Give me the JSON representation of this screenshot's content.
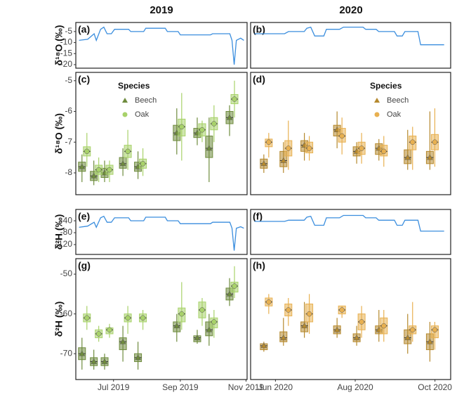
{
  "column_titles": [
    "2019",
    "2020"
  ],
  "chart_data": [
    {
      "type": "line",
      "label": "(a)",
      "ylabel": "δ¹⁸O (‰)",
      "color": "#3b8ede",
      "xlim": [
        147,
        306
      ],
      "ylim": [
        -21.6,
        -0.9
      ],
      "yticks": [
        -5,
        -10,
        -15,
        -20
      ],
      "x": [
        150,
        158,
        164,
        166,
        170,
        173,
        176,
        180,
        183,
        196,
        198,
        210,
        212,
        230,
        232,
        242,
        244,
        272,
        274,
        290,
        292,
        294,
        296,
        300,
        303
      ],
      "values": [
        -9,
        -8.5,
        -6,
        -9,
        -4,
        -3,
        -6,
        -6,
        -4,
        -4,
        -5,
        -5,
        -3.5,
        -3.5,
        -5,
        -5,
        -6.5,
        -6.5,
        -6,
        -6,
        -9,
        -20,
        -9,
        -8,
        -9
      ]
    },
    {
      "type": "line",
      "label": "(b)",
      "color": "#3b8ede",
      "xlim": [
        134,
        287
      ],
      "ylim": [
        -21.6,
        -0.9
      ],
      "x": [
        137,
        160,
        163,
        175,
        177,
        180,
        183,
        190,
        192,
        202,
        205,
        220,
        222,
        230,
        232,
        244,
        246,
        250,
        252,
        262,
        264,
        282
      ],
      "values": [
        -6,
        -6,
        -5,
        -5,
        -3.5,
        -3,
        -7,
        -7,
        -4,
        -4,
        -3,
        -3,
        -4,
        -4,
        -5,
        -5,
        -7,
        -7,
        -5,
        -5,
        -11,
        -11
      ]
    },
    {
      "type": "box",
      "label": "(c)",
      "ylabel": "δ¹⁸O (‰)",
      "xlim": [
        147,
        306
      ],
      "ylim": [
        -8.71,
        -4.73
      ],
      "yticks": [
        -5,
        -6,
        -7,
        -8
      ],
      "legend": "upper-left",
      "legend_title": "Species",
      "x": [
        155,
        166,
        176,
        193,
        207,
        243,
        262,
        273,
        292
      ],
      "series": [
        {
          "name": "Beech",
          "marker": "triangle",
          "color": "#6e8b3d",
          "min": [
            -8.3,
            -8.4,
            -8.3,
            -8.1,
            -8.2,
            -7.4,
            -7.1,
            -8.3,
            -6.8
          ],
          "q1": [
            -7.95,
            -8.25,
            -8.15,
            -7.85,
            -7.95,
            -6.95,
            -6.85,
            -7.5,
            -6.4
          ],
          "median": [
            -7.8,
            -8.1,
            -8.0,
            -7.7,
            -7.8,
            -6.7,
            -6.7,
            -7.2,
            -6.2
          ],
          "q3": [
            -7.65,
            -7.95,
            -7.85,
            -7.5,
            -7.65,
            -6.45,
            -6.55,
            -6.8,
            -6.0
          ],
          "max": [
            -7.4,
            -7.6,
            -7.6,
            -7.2,
            -7.3,
            -5.9,
            -6.2,
            -6.2,
            -5.8
          ]
        },
        {
          "name": "Oak",
          "marker": "circle",
          "color": "#a8d26a",
          "min": [
            -7.8,
            -8.3,
            -8.3,
            -7.9,
            -8.1,
            -7.6,
            -7.0,
            -7.0,
            -6.2
          ],
          "q1": [
            -7.45,
            -8.05,
            -8.05,
            -7.5,
            -7.85,
            -6.8,
            -6.8,
            -6.6,
            -5.75
          ],
          "median": [
            -7.3,
            -7.9,
            -7.9,
            -7.3,
            -7.7,
            -6.5,
            -6.6,
            -6.4,
            -5.6
          ],
          "q3": [
            -7.15,
            -7.75,
            -7.75,
            -7.1,
            -7.55,
            -6.25,
            -6.4,
            -6.2,
            -5.45
          ],
          "max": [
            -6.7,
            -7.5,
            -7.6,
            -6.6,
            -7.2,
            -5.4,
            -6.3,
            -5.8,
            -5.0
          ]
        }
      ]
    },
    {
      "type": "box",
      "label": "(d)",
      "xlim": [
        134,
        287
      ],
      "ylim": [
        -8.71,
        -4.73
      ],
      "legend": "upper-right",
      "legend_title": "Species",
      "x": [
        146,
        161,
        177,
        202,
        217,
        234,
        256,
        273
      ],
      "series": [
        {
          "name": "Beech",
          "marker": "triangle",
          "color": "#b5892e",
          "min": [
            -8.0,
            -8.0,
            -7.6,
            -7.2,
            -7.7,
            -7.6,
            -7.9,
            -7.9
          ],
          "q1": [
            -7.85,
            -7.8,
            -7.3,
            -6.8,
            -7.45,
            -7.4,
            -7.7,
            -7.7
          ],
          "median": [
            -7.7,
            -7.6,
            -7.1,
            -6.6,
            -7.3,
            -7.2,
            -7.5,
            -7.5
          ],
          "q3": [
            -7.55,
            -7.3,
            -6.95,
            -6.45,
            -7.15,
            -7.05,
            -7.25,
            -7.3
          ],
          "max": [
            -7.4,
            -7.0,
            -6.7,
            -6.0,
            -7.0,
            -6.9,
            -6.6,
            -6.0
          ]
        },
        {
          "name": "Oak",
          "marker": "circle",
          "color": "#e8b050",
          "min": [
            -7.5,
            -7.9,
            -7.6,
            -7.4,
            -7.7,
            -7.8,
            -7.9,
            -7.8
          ],
          "q1": [
            -7.15,
            -7.45,
            -7.35,
            -7.0,
            -7.4,
            -7.45,
            -7.25,
            -7.25
          ],
          "median": [
            -7.0,
            -7.2,
            -7.2,
            -6.8,
            -7.2,
            -7.3,
            -7.0,
            -7.0
          ],
          "q3": [
            -6.9,
            -6.95,
            -7.0,
            -6.55,
            -7.0,
            -7.1,
            -6.8,
            -6.75
          ],
          "max": [
            -6.7,
            -6.3,
            -6.8,
            -6.2,
            -6.7,
            -6.8,
            -6.5,
            -5.9
          ]
        }
      ]
    },
    {
      "type": "line",
      "label": "(e)",
      "ylabel": "δ²H (‰)",
      "color": "#3b8ede",
      "xlim": [
        147,
        306
      ],
      "ylim": [
        -153,
        -2
      ],
      "yticks": [
        -40,
        -80,
        -120
      ],
      "x": [
        150,
        158,
        164,
        166,
        170,
        173,
        176,
        180,
        183,
        196,
        198,
        210,
        212,
        230,
        232,
        242,
        244,
        272,
        274,
        290,
        292,
        294,
        296,
        300,
        303
      ],
      "values": [
        -62,
        -58,
        -45,
        -62,
        -30,
        -25,
        -45,
        -45,
        -30,
        -30,
        -40,
        -40,
        -28,
        -28,
        -40,
        -40,
        -50,
        -50,
        -45,
        -45,
        -65,
        -140,
        -65,
        -60,
        -65
      ]
    },
    {
      "type": "line",
      "label": "(f)",
      "color": "#3b8ede",
      "xlim": [
        134,
        287
      ],
      "ylim": [
        -153,
        -2
      ],
      "x": [
        137,
        160,
        163,
        175,
        177,
        180,
        183,
        190,
        192,
        202,
        205,
        220,
        222,
        230,
        232,
        244,
        246,
        250,
        252,
        262,
        264,
        282
      ],
      "values": [
        -42,
        -42,
        -38,
        -38,
        -28,
        -25,
        -55,
        -55,
        -30,
        -30,
        -22,
        -22,
        -30,
        -30,
        -38,
        -38,
        -55,
        -55,
        -38,
        -38,
        -75,
        -75
      ]
    },
    {
      "type": "box",
      "label": "(g)",
      "ylabel": "δ²H (‰)",
      "xlim": [
        147,
        306
      ],
      "ylim": [
        -76.5,
        -46.1
      ],
      "yticks": [
        -50,
        -60,
        -70
      ],
      "xticks": [
        {
          "value": 182,
          "label": "Jul 2019"
        },
        {
          "value": 244,
          "label": "Sep 2019"
        },
        {
          "value": 305,
          "label": "Nov 2019"
        }
      ],
      "x": [
        155,
        166,
        176,
        193,
        207,
        243,
        262,
        273,
        292
      ],
      "series": [
        {
          "name": "Beech",
          "marker": "triangle",
          "color": "#6e8b3d",
          "min": [
            -74,
            -74,
            -74,
            -72,
            -74,
            -67,
            -67.5,
            -68,
            -58
          ],
          "q1": [
            -71.5,
            -73,
            -73,
            -69,
            -72,
            -64.5,
            -67,
            -65.5,
            -56.5
          ],
          "median": [
            -70,
            -72,
            -72,
            -67,
            -71,
            -63,
            -66,
            -64,
            -55
          ],
          "q3": [
            -68.5,
            -71,
            -71,
            -66,
            -70,
            -62,
            -65.5,
            -62,
            -53.5
          ],
          "max": [
            -66,
            -69,
            -70,
            -63,
            -67,
            -60,
            -64,
            -60,
            -51
          ]
        },
        {
          "name": "Oak",
          "marker": "circle",
          "color": "#a8d26a",
          "min": [
            -64,
            -67,
            -66,
            -65,
            -64,
            -64,
            -63,
            -66,
            -56
          ],
          "q1": [
            -62,
            -66,
            -65,
            -62,
            -62,
            -62,
            -61,
            -63.5,
            -54.5
          ],
          "median": [
            -61,
            -65,
            -64,
            -61,
            -61,
            -60,
            -59,
            -62,
            -53
          ],
          "q3": [
            -60,
            -64,
            -63.5,
            -60,
            -60,
            -58.5,
            -57,
            -61,
            -52
          ],
          "max": [
            -58,
            -63,
            -62.5,
            -58,
            -59,
            -52,
            -56,
            -59,
            -48
          ]
        }
      ]
    },
    {
      "type": "box",
      "label": "(h)",
      "xlim": [
        134,
        287
      ],
      "ylim": [
        -76.5,
        -46.1
      ],
      "xticks": [
        {
          "value": 153,
          "label": "Jun 2020"
        },
        {
          "value": 214,
          "label": "Aug 2020"
        },
        {
          "value": 275,
          "label": "Oct 2020"
        }
      ],
      "x": [
        146,
        161,
        177,
        202,
        217,
        234,
        256,
        273
      ],
      "series": [
        {
          "name": "Beech",
          "marker": "triangle",
          "color": "#b5892e",
          "min": [
            -69.5,
            -68,
            -66,
            -66,
            -68,
            -67,
            -70,
            -72
          ],
          "q1": [
            -69,
            -67,
            -64.5,
            -65,
            -67,
            -65,
            -67.5,
            -69
          ],
          "median": [
            -68,
            -66,
            -63,
            -64,
            -66,
            -64,
            -66,
            -67
          ],
          "q3": [
            -67.5,
            -64.5,
            -62,
            -63,
            -65,
            -63,
            -64,
            -65
          ],
          "max": [
            -67,
            -61,
            -57,
            -61,
            -63,
            -59,
            -60,
            -62
          ]
        },
        {
          "name": "Oak",
          "marker": "circle",
          "color": "#e8b050",
          "min": [
            -60,
            -63,
            -65,
            -61,
            -66,
            -67,
            -67,
            -69
          ],
          "q1": [
            -58,
            -60.5,
            -62,
            -60,
            -64,
            -65,
            -65,
            -66
          ],
          "median": [
            -57,
            -59,
            -60,
            -59,
            -62,
            -63,
            -64,
            -64
          ],
          "q3": [
            -56,
            -57.5,
            -57.5,
            -58,
            -60,
            -61,
            -63,
            -63
          ],
          "max": [
            -55,
            -56,
            -55,
            -58,
            -58,
            -59,
            -57,
            -62
          ]
        }
      ]
    }
  ]
}
